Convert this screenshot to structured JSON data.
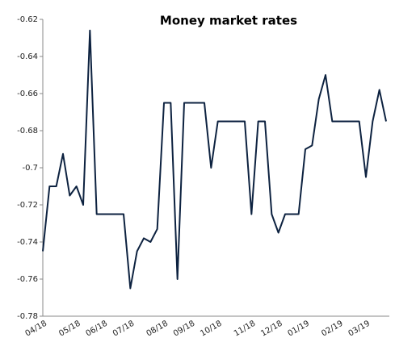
{
  "chart_data": {
    "type": "line",
    "title": "Money market rates",
    "categories": [
      "04/18",
      null,
      null,
      null,
      null,
      "05/18",
      null,
      null,
      null,
      "06/18",
      null,
      null,
      null,
      "07/18",
      null,
      null,
      null,
      null,
      "08/18",
      null,
      null,
      null,
      "09/18",
      null,
      null,
      null,
      "10/18",
      null,
      null,
      null,
      null,
      "11/18",
      null,
      null,
      null,
      "12/18",
      null,
      null,
      null,
      "01/19",
      null,
      null,
      null,
      null,
      "02/19",
      null,
      null,
      null,
      "03/19",
      null,
      null,
      null
    ],
    "series": [
      {
        "name": "Money market rates",
        "color": "#0d2240",
        "values": [
          -0.745,
          -0.71,
          -0.71,
          -0.6925,
          -0.715,
          -0.71,
          -0.72,
          -0.626,
          -0.725,
          -0.725,
          -0.725,
          -0.725,
          -0.725,
          -0.765,
          -0.745,
          -0.738,
          -0.74,
          -0.733,
          -0.665,
          -0.665,
          -0.76,
          -0.665,
          -0.665,
          -0.665,
          -0.665,
          -0.7,
          -0.675,
          -0.675,
          -0.675,
          -0.675,
          -0.675,
          -0.725,
          -0.675,
          -0.675,
          -0.725,
          -0.735,
          -0.725,
          -0.725,
          -0.725,
          -0.69,
          -0.688,
          -0.663,
          -0.65,
          -0.675,
          -0.675,
          -0.675,
          -0.675,
          -0.675,
          -0.705,
          -0.675,
          -0.658,
          -0.675
        ]
      }
    ],
    "ylim": [
      -0.78,
      -0.62
    ],
    "yticks": [
      -0.78,
      -0.76,
      -0.74,
      -0.72,
      -0.7,
      -0.68,
      -0.66,
      -0.64,
      -0.62
    ]
  }
}
